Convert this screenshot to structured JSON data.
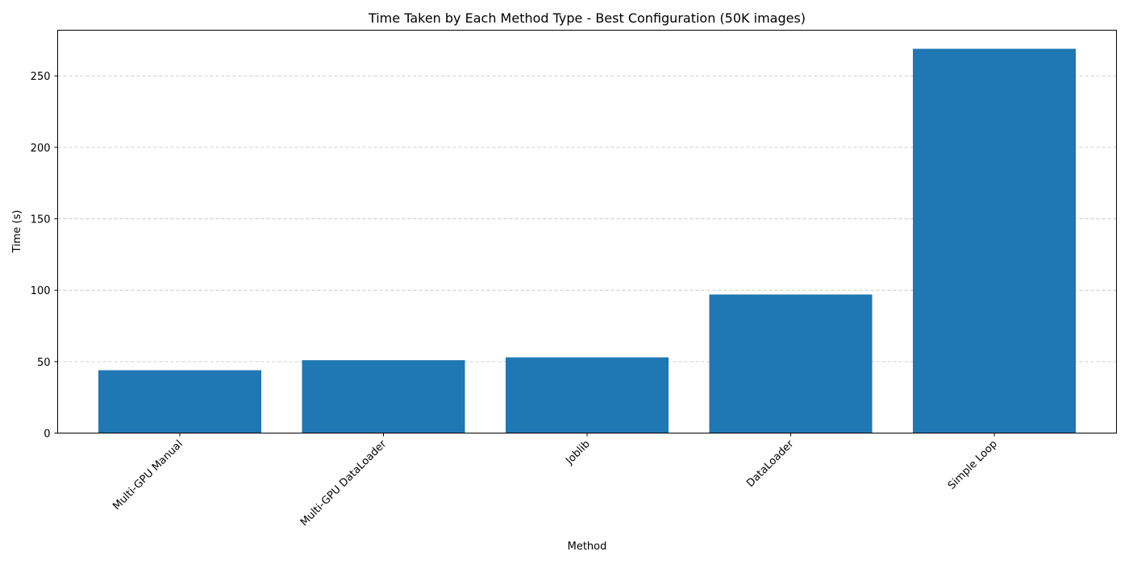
{
  "chart_data": {
    "type": "bar",
    "title": "Time Taken by Each Method Type - Best Configuration (50K images)",
    "xlabel": "Method",
    "ylabel": "Time (s)",
    "categories": [
      "Multi-GPU Manual",
      "Multi-GPU DataLoader",
      "Joblib",
      "DataLoader",
      "Simple Loop"
    ],
    "values": [
      44,
      51,
      53,
      97,
      269
    ],
    "ylim": [
      0,
      282
    ],
    "yticks": [
      0,
      50,
      100,
      150,
      200,
      250
    ],
    "grid": "y-dashed",
    "bar_color": "#1f77b4",
    "xtick_rotation": 45
  }
}
